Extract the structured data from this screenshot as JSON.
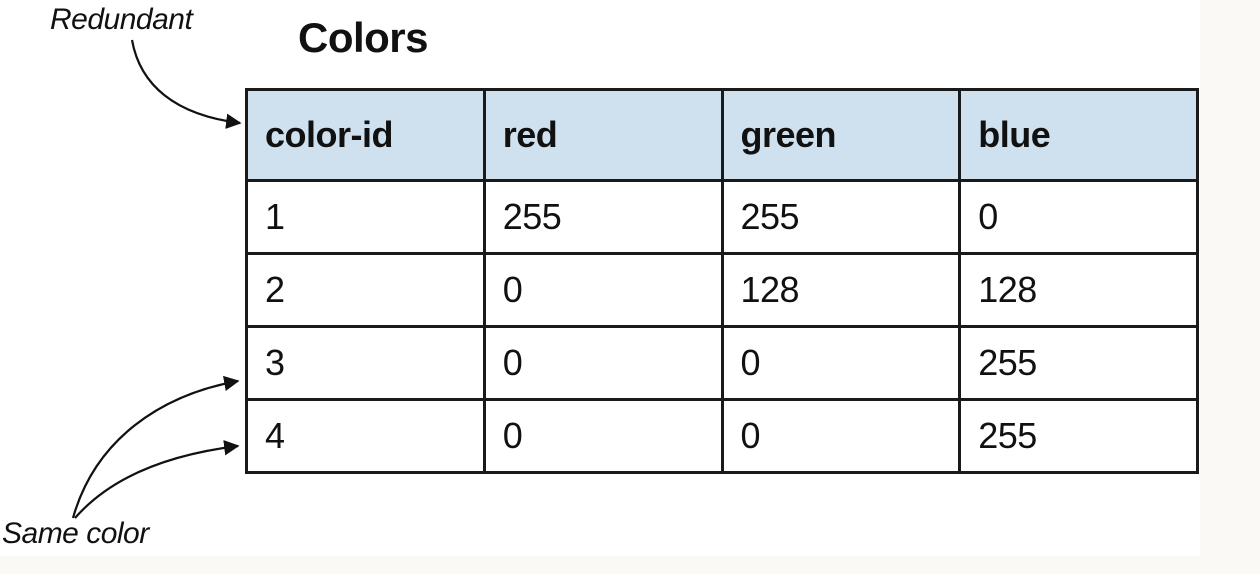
{
  "title": "Colors",
  "callouts": {
    "redundant": "Redundant",
    "same_color": "Same color"
  },
  "table": {
    "headers": [
      "color-id",
      "red",
      "green",
      "blue"
    ],
    "rows": [
      [
        "1",
        "255",
        "255",
        "0"
      ],
      [
        "2",
        "0",
        "128",
        "128"
      ],
      [
        "3",
        "0",
        "0",
        "255"
      ],
      [
        "4",
        "0",
        "0",
        "255"
      ]
    ],
    "header_color": "#cfe1ef"
  }
}
